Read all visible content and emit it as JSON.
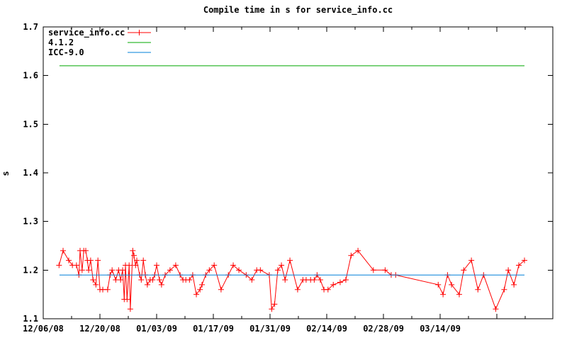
{
  "title": "Compile time in s for service_info.cc",
  "chart_data": {
    "type": "line",
    "title": "Compile time in s for service_info.cc",
    "xlabel": "",
    "ylabel": "s",
    "ylim": [
      1.1,
      1.7
    ],
    "xlim_days": [
      0,
      125.8
    ],
    "x_start_date": "12/06/08",
    "grid": false,
    "legend_position": "top-left",
    "yticks": [
      "1.1",
      "1.2",
      "1.3",
      "1.4",
      "1.5",
      "1.6",
      "1.7"
    ],
    "xticks": [
      {
        "day": 0,
        "label": "12/06/08"
      },
      {
        "day": 14,
        "label": "12/20/08"
      },
      {
        "day": 28,
        "label": "01/03/09"
      },
      {
        "day": 42,
        "label": "01/17/09"
      },
      {
        "day": 56,
        "label": "01/31/09"
      },
      {
        "day": 70,
        "label": "02/14/09"
      },
      {
        "day": 84,
        "label": "02/28/09"
      },
      {
        "day": 98,
        "label": "03/14/09"
      },
      {
        "day": 112,
        "label": ""
      }
    ],
    "minor_xtick_days": [
      7,
      21,
      35,
      49,
      63,
      77,
      91,
      105,
      119
    ],
    "colors": {
      "series_red": "#ff0000",
      "gcc_green": "#00a800",
      "icc_blue": "#0080d8",
      "axis": "#000000"
    },
    "legend": [
      {
        "label": "service_info.cc",
        "color": "#ff0000",
        "marker": "plus"
      },
      {
        "label": "4.1.2",
        "color": "#00a800",
        "marker": "none"
      },
      {
        "label": "ICC-9.0",
        "color": "#0080d8",
        "marker": "none"
      }
    ],
    "series": [
      {
        "name": "service_info.cc",
        "color": "#ff0000",
        "marker": "plus",
        "points": [
          [
            3.9,
            1.21
          ],
          [
            4.9,
            1.24
          ],
          [
            6.3,
            1.22
          ],
          [
            7.2,
            1.21
          ],
          [
            8.2,
            1.21
          ],
          [
            8.8,
            1.19
          ],
          [
            9.1,
            1.24
          ],
          [
            9.6,
            1.2
          ],
          [
            10.0,
            1.24
          ],
          [
            10.5,
            1.24
          ],
          [
            10.9,
            1.22
          ],
          [
            11.2,
            1.2
          ],
          [
            11.7,
            1.22
          ],
          [
            12.3,
            1.18
          ],
          [
            13.0,
            1.17
          ],
          [
            13.5,
            1.22
          ],
          [
            14.0,
            1.16
          ],
          [
            14.7,
            1.16
          ],
          [
            15.9,
            1.16
          ],
          [
            16.5,
            1.19
          ],
          [
            17.0,
            1.2
          ],
          [
            17.9,
            1.18
          ],
          [
            18.6,
            1.2
          ],
          [
            19.1,
            1.18
          ],
          [
            19.6,
            1.2
          ],
          [
            20.0,
            1.14
          ],
          [
            20.3,
            1.21
          ],
          [
            20.7,
            1.14
          ],
          [
            21.2,
            1.21
          ],
          [
            21.5,
            1.12
          ],
          [
            22.1,
            1.24
          ],
          [
            22.4,
            1.23
          ],
          [
            22.8,
            1.21
          ],
          [
            23.1,
            1.22
          ],
          [
            23.8,
            1.19
          ],
          [
            24.2,
            1.18
          ],
          [
            24.7,
            1.22
          ],
          [
            25.2,
            1.19
          ],
          [
            25.7,
            1.17
          ],
          [
            26.4,
            1.18
          ],
          [
            27.0,
            1.18
          ],
          [
            27.5,
            1.19
          ],
          [
            28.0,
            1.21
          ],
          [
            28.7,
            1.18
          ],
          [
            29.2,
            1.17
          ],
          [
            30.1,
            1.19
          ],
          [
            31.3,
            1.2
          ],
          [
            32.7,
            1.21
          ],
          [
            33.8,
            1.19
          ],
          [
            34.5,
            1.18
          ],
          [
            35.2,
            1.18
          ],
          [
            36.1,
            1.18
          ],
          [
            36.9,
            1.19
          ],
          [
            37.8,
            1.15
          ],
          [
            38.7,
            1.16
          ],
          [
            39.2,
            1.17
          ],
          [
            40.1,
            1.19
          ],
          [
            41.0,
            1.2
          ],
          [
            42.2,
            1.21
          ],
          [
            43.9,
            1.16
          ],
          [
            45.7,
            1.19
          ],
          [
            46.9,
            1.21
          ],
          [
            48.3,
            1.2
          ],
          [
            50.1,
            1.19
          ],
          [
            51.5,
            1.18
          ],
          [
            52.7,
            1.2
          ],
          [
            53.6,
            1.2
          ],
          [
            55.8,
            1.19
          ],
          [
            56.4,
            1.12
          ],
          [
            57.1,
            1.13
          ],
          [
            57.9,
            1.2
          ],
          [
            58.8,
            1.21
          ],
          [
            59.7,
            1.18
          ],
          [
            60.9,
            1.22
          ],
          [
            62.8,
            1.16
          ],
          [
            64.1,
            1.18
          ],
          [
            64.9,
            1.18
          ],
          [
            66.0,
            1.18
          ],
          [
            66.9,
            1.18
          ],
          [
            67.6,
            1.19
          ],
          [
            68.4,
            1.18
          ],
          [
            69.3,
            1.16
          ],
          [
            70.3,
            1.16
          ],
          [
            71.6,
            1.17
          ],
          [
            73.3,
            1.175
          ],
          [
            74.7,
            1.18
          ],
          [
            76.0,
            1.23
          ],
          [
            77.7,
            1.24
          ],
          [
            81.5,
            1.2
          ],
          [
            84.4,
            1.2
          ],
          [
            85.9,
            1.19
          ],
          [
            87.0,
            1.19
          ],
          [
            97.5,
            1.17
          ],
          [
            98.7,
            1.15
          ],
          [
            99.8,
            1.19
          ],
          [
            100.8,
            1.17
          ],
          [
            102.7,
            1.15
          ],
          [
            103.8,
            1.2
          ],
          [
            105.7,
            1.22
          ],
          [
            107.3,
            1.16
          ],
          [
            108.7,
            1.19
          ],
          [
            111.7,
            1.12
          ],
          [
            113.8,
            1.16
          ],
          [
            114.8,
            1.2
          ],
          [
            116.2,
            1.17
          ],
          [
            117.4,
            1.21
          ],
          [
            118.8,
            1.22
          ]
        ]
      },
      {
        "name": "4.1.2",
        "color": "#00a800",
        "marker": "none",
        "points": [
          [
            4.0,
            1.62
          ],
          [
            118.8,
            1.62
          ]
        ]
      },
      {
        "name": "ICC-9.0",
        "color": "#0080d8",
        "marker": "none",
        "points": [
          [
            4.0,
            1.19
          ],
          [
            118.8,
            1.19
          ]
        ]
      }
    ]
  }
}
